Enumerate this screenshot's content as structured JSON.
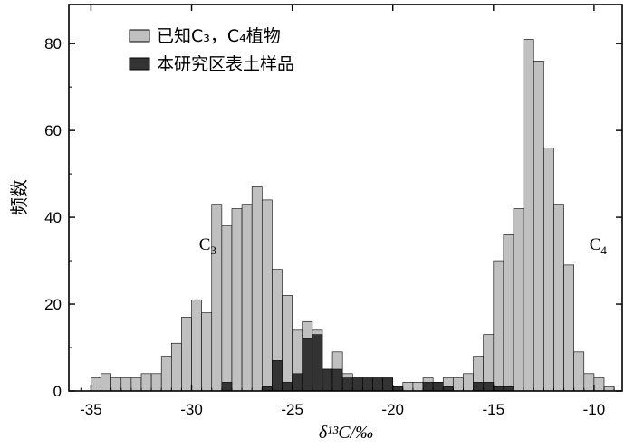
{
  "chart_data": {
    "type": "bar",
    "xlabel": "δ¹³C/‰",
    "ylabel": "频数",
    "xlim": [
      -36.1,
      -8.6
    ],
    "ylim": [
      0,
      89
    ],
    "xticks": [
      -35,
      -30,
      -25,
      -20,
      -15,
      -10
    ],
    "yticks": [
      0,
      20,
      40,
      60,
      80
    ],
    "bin_width": 0.5,
    "legend_position": "top-left",
    "annotations": [
      {
        "base": "C",
        "sub": "3",
        "x": -29.2,
        "y": 32.5
      },
      {
        "base": "C",
        "sub": "4",
        "x": -9.8,
        "y": 32.5
      }
    ],
    "series": [
      {
        "name": "已知C₃，C₄植物",
        "color": "#c0c0c0",
        "bins": [
          [
            -35.0,
            3
          ],
          [
            -34.5,
            4
          ],
          [
            -34.0,
            3
          ],
          [
            -33.5,
            3
          ],
          [
            -33.0,
            3
          ],
          [
            -32.5,
            4
          ],
          [
            -32.0,
            4
          ],
          [
            -31.5,
            8
          ],
          [
            -31.0,
            11
          ],
          [
            -30.5,
            17
          ],
          [
            -30.0,
            21
          ],
          [
            -29.5,
            18
          ],
          [
            -29.0,
            43
          ],
          [
            -28.5,
            38
          ],
          [
            -28.0,
            42
          ],
          [
            -27.5,
            43
          ],
          [
            -27.0,
            47
          ],
          [
            -26.5,
            44
          ],
          [
            -26.0,
            28
          ],
          [
            -25.5,
            22
          ],
          [
            -25.0,
            14
          ],
          [
            -24.5,
            16
          ],
          [
            -24.0,
            14
          ],
          [
            -23.5,
            5
          ],
          [
            -23.0,
            9
          ],
          [
            -22.5,
            4
          ],
          [
            -22.0,
            3
          ],
          [
            -21.5,
            3
          ],
          [
            -21.0,
            3
          ],
          [
            -20.5,
            3
          ],
          [
            -20.0,
            1
          ],
          [
            -19.5,
            2
          ],
          [
            -19.0,
            2
          ],
          [
            -18.5,
            3
          ],
          [
            -18.0,
            2
          ],
          [
            -17.5,
            3
          ],
          [
            -17.0,
            3
          ],
          [
            -16.5,
            4
          ],
          [
            -16.0,
            8
          ],
          [
            -15.5,
            13
          ],
          [
            -15.0,
            30
          ],
          [
            -14.5,
            36
          ],
          [
            -14.0,
            42
          ],
          [
            -13.5,
            81
          ],
          [
            -13.0,
            76
          ],
          [
            -12.5,
            56
          ],
          [
            -12.0,
            43
          ],
          [
            -11.5,
            29
          ],
          [
            -11.0,
            9
          ],
          [
            -10.5,
            4
          ],
          [
            -10.0,
            3
          ],
          [
            -9.5,
            1
          ]
        ]
      },
      {
        "name": "本研究区表土样品",
        "color": "#333333",
        "bins": [
          [
            -28.5,
            2
          ],
          [
            -26.5,
            1
          ],
          [
            -26.0,
            7
          ],
          [
            -25.5,
            2
          ],
          [
            -25.0,
            4
          ],
          [
            -24.5,
            12
          ],
          [
            -24.0,
            13
          ],
          [
            -23.5,
            5
          ],
          [
            -23.0,
            5
          ],
          [
            -22.5,
            3
          ],
          [
            -22.0,
            3
          ],
          [
            -21.5,
            3
          ],
          [
            -21.0,
            3
          ],
          [
            -20.5,
            3
          ],
          [
            -20.0,
            1
          ],
          [
            -18.5,
            2
          ],
          [
            -18.0,
            2
          ],
          [
            -17.5,
            1
          ],
          [
            -16.0,
            2
          ],
          [
            -15.5,
            2
          ],
          [
            -15.0,
            1
          ],
          [
            -14.5,
            1
          ]
        ]
      }
    ]
  }
}
